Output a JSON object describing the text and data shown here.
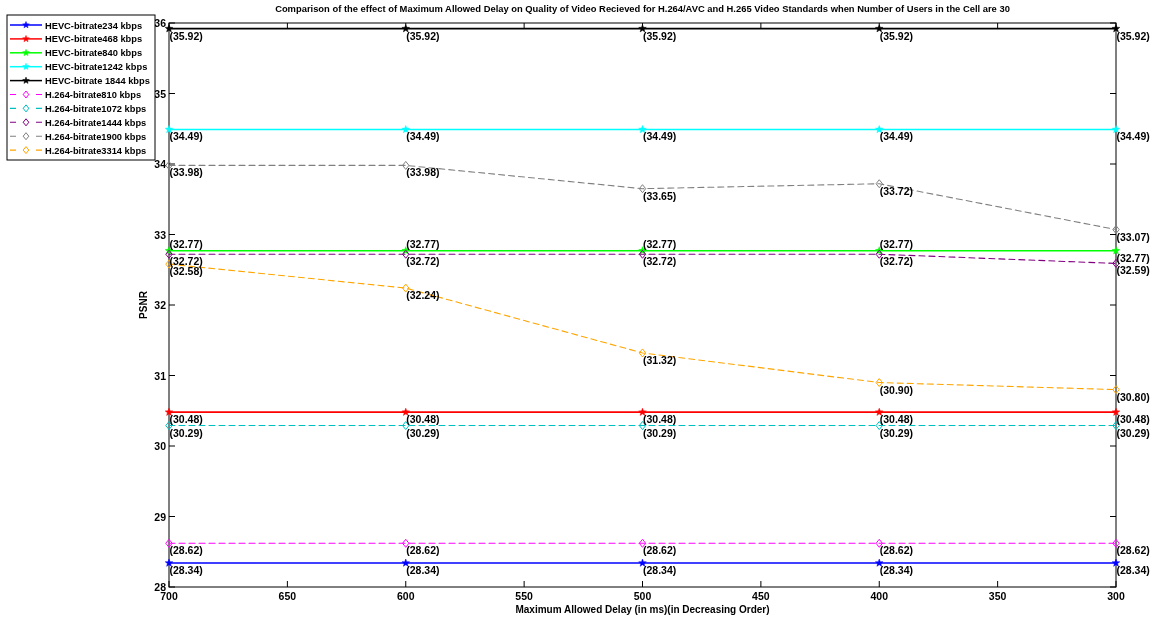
{
  "chart_data": {
    "type": "line",
    "title": "Comparison of the effect of Maximum Allowed Delay on Quality of Video Recieved for H.264/AVC and H.265 Video Standards when Number of Users in the Cell are 30",
    "xlabel": "Maximum Allowed Delay (in ms)(in Decreasing Order)",
    "ylabel": "PSNR",
    "x": [
      700,
      600,
      500,
      400,
      300
    ],
    "xlim": [
      700,
      300
    ],
    "xticks": [
      700,
      650,
      600,
      550,
      500,
      450,
      400,
      350,
      300
    ],
    "ylim": [
      28,
      36
    ],
    "yticks": [
      28,
      29,
      30,
      31,
      32,
      33,
      34,
      35,
      36
    ],
    "legend": "top left",
    "series": [
      {
        "name": "HEVC-bitrate234 kbps",
        "color": "#0000ff",
        "marker": "star",
        "line_style": "solid",
        "values": [
          28.34,
          28.34,
          28.34,
          28.34,
          28.34
        ],
        "value_labels": [
          "(28.34)",
          "(28.34)",
          "(28.34)",
          "(28.34)",
          "(28.34)"
        ]
      },
      {
        "name": "HEVC-bitrate468 kbps",
        "color": "#ff0000",
        "marker": "star",
        "line_style": "solid",
        "values": [
          30.48,
          30.48,
          30.48,
          30.48,
          30.48
        ],
        "value_labels": [
          "(30.48)",
          "(30.48)",
          "(30.48)",
          "(30.48)",
          "(30.48)"
        ]
      },
      {
        "name": "HEVC-bitrate840 kbps",
        "color": "#00ff00",
        "marker": "star",
        "line_style": "solid",
        "values": [
          32.77,
          32.77,
          32.77,
          32.77,
          32.77
        ],
        "value_labels": [
          "(32.77)",
          "(32.77)",
          "(32.77)",
          "(32.77)",
          "(32.77)"
        ]
      },
      {
        "name": "HEVC-bitrate1242 kbps",
        "color": "#00ffff",
        "marker": "star",
        "line_style": "solid",
        "values": [
          34.49,
          34.49,
          34.49,
          34.49,
          34.49
        ],
        "value_labels": [
          "(34.49)",
          "(34.49)",
          "(34.49)",
          "(34.49)",
          "(34.49)"
        ]
      },
      {
        "name": "HEVC-bitrate 1844 kbps",
        "color": "#000000",
        "marker": "star",
        "line_style": "solid",
        "values": [
          35.92,
          35.92,
          35.92,
          35.92,
          35.92
        ],
        "value_labels": [
          "(35.92)",
          "(35.92)",
          "(35.92)",
          "(35.92)",
          "(35.92)"
        ]
      },
      {
        "name": "H.264-bitrate810 kbps",
        "color": "#ff00ff",
        "marker": "diamond",
        "line_style": "dashed",
        "values": [
          28.62,
          28.62,
          28.62,
          28.62,
          28.62
        ],
        "value_labels": [
          "(28.62)",
          "(28.62)",
          "(28.62)",
          "(28.62)",
          "(28.62)"
        ]
      },
      {
        "name": "H.264-bitrate1072 kbps",
        "color": "#00bfbf",
        "marker": "diamond",
        "line_style": "dashed",
        "values": [
          30.29,
          30.29,
          30.29,
          30.29,
          30.29
        ],
        "value_labels": [
          "(30.29)",
          "(30.29)",
          "(30.29)",
          "(30.29)",
          "(30.29)"
        ]
      },
      {
        "name": "H.264-bitrate1444 kbps",
        "color": "#800080",
        "marker": "diamond",
        "line_style": "dashed",
        "values": [
          32.72,
          32.72,
          32.72,
          32.72,
          32.59
        ],
        "value_labels": [
          "(32.72)",
          "(32.72)",
          "(32.72)",
          "(32.72)",
          "(32.59)"
        ]
      },
      {
        "name": "H.264-bitrate1900 kbps",
        "color": "#808080",
        "marker": "diamond",
        "line_style": "dashed",
        "values": [
          33.98,
          33.98,
          33.65,
          33.72,
          33.07
        ],
        "value_labels": [
          "(33.98)",
          "(33.98)",
          "(33.65)",
          "(33.72)",
          "(33.07)"
        ]
      },
      {
        "name": "H.264-bitrate3314 kbps",
        "color": "#ffa500",
        "marker": "diamond",
        "line_style": "dashed",
        "values": [
          32.58,
          32.24,
          31.32,
          30.9,
          30.8
        ],
        "value_labels": [
          "(32.58)",
          "(32.24)",
          "(31.32)",
          "(30.90)",
          "(30.80)"
        ]
      }
    ]
  }
}
